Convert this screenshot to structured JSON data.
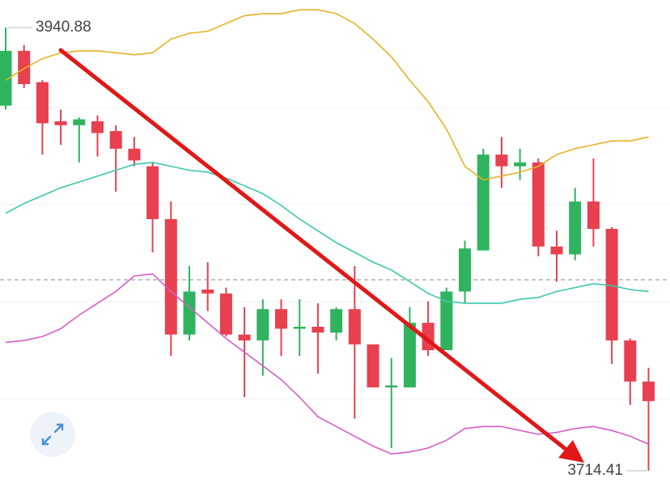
{
  "chart_data": {
    "type": "candlestick",
    "up_color": "#2fb35f",
    "down_color": "#e8404f",
    "ylim": [
      3702,
      3955
    ],
    "open": [
      3901,
      3929,
      3913,
      3893,
      3891,
      3893,
      3888,
      3879,
      3870,
      3843,
      3784,
      3807,
      3805,
      3784,
      3781,
      3797,
      3787,
      3788,
      3785,
      3797,
      3779,
      3757,
      3757,
      3790,
      3776,
      3806,
      3827,
      3876,
      3870,
      3872,
      3829,
      3825,
      3852,
      3838,
      3781,
      3760
    ],
    "high": [
      3940.88,
      3932,
      3914,
      3899,
      3895,
      3896,
      3891,
      3885,
      3872,
      3852,
      3819,
      3821,
      3808,
      3798,
      3802,
      3802,
      3802,
      3800,
      3798,
      3819,
      3779,
      3772,
      3798,
      3801,
      3808,
      3832,
      3879,
      3885,
      3879,
      3874,
      3837,
      3859,
      3874,
      3839,
      3782,
      3767
    ],
    "low": [
      3899,
      3910,
      3876,
      3881,
      3872,
      3875,
      3857,
      3870,
      3826,
      3773,
      3781,
      3796,
      3783,
      3752,
      3763,
      3773,
      3773,
      3764,
      3781,
      3741,
      3757,
      3726,
      3757,
      3773,
      3776,
      3800,
      3827,
      3859,
      3863,
      3824,
      3811,
      3822,
      3829,
      3769,
      3748,
      3714.41
    ],
    "close": [
      3929,
      3912,
      3892,
      3891,
      3894,
      3887,
      3879,
      3873,
      3843,
      3784,
      3806,
      3805,
      3784,
      3781,
      3797,
      3787,
      3788,
      3785,
      3797,
      3779,
      3757,
      3758,
      3790,
      3776,
      3806,
      3828,
      3876,
      3870,
      3872,
      3829,
      3825,
      3852,
      3838,
      3781,
      3760,
      3750
    ],
    "lines": [
      {
        "color": "#e6b225",
        "values": [
          3914,
          3920,
          3925,
          3928,
          3929,
          3929,
          3928,
          3927,
          3928,
          3935,
          3938,
          3939,
          3943,
          3947,
          3948,
          3948,
          3950,
          3950,
          3948,
          3943,
          3935,
          3926,
          3914,
          3903,
          3889,
          3870,
          3863,
          3865,
          3867,
          3870,
          3876,
          3879,
          3881,
          3883,
          3883,
          3885
        ]
      },
      {
        "color": "#3cc8a8",
        "values": [
          3846,
          3851,
          3855,
          3859,
          3862,
          3865,
          3868,
          3871,
          3872,
          3870,
          3868,
          3867,
          3864,
          3860,
          3856,
          3850,
          3843,
          3837,
          3831,
          3826,
          3821,
          3817,
          3811,
          3805,
          3801,
          3800,
          3800,
          3800,
          3802,
          3803,
          3806,
          3808,
          3810,
          3809,
          3807,
          3806
        ]
      },
      {
        "color": "#d85cc8",
        "values": [
          3780,
          3781,
          3783,
          3787,
          3794,
          3800,
          3806,
          3814,
          3815,
          3806,
          3798,
          3790,
          3782,
          3775,
          3768,
          3761,
          3752,
          3742,
          3737,
          3732,
          3727,
          3723,
          3724,
          3726,
          3730,
          3736,
          3737,
          3737,
          3735,
          3733,
          3734,
          3736,
          3737,
          3735,
          3732,
          3728
        ]
      }
    ],
    "reference_line": 3812,
    "high_label": "3940.88",
    "low_label": "3714.41"
  }
}
